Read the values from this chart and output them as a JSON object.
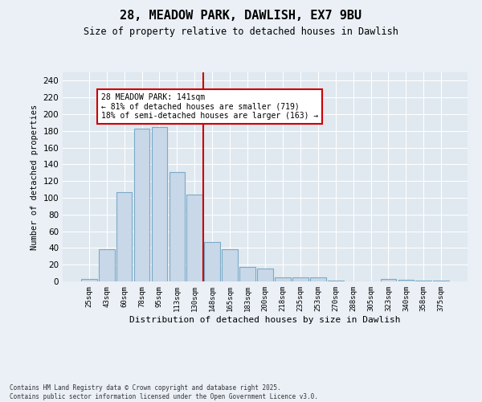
{
  "title": "28, MEADOW PARK, DAWLISH, EX7 9BU",
  "subtitle": "Size of property relative to detached houses in Dawlish",
  "xlabel": "Distribution of detached houses by size in Dawlish",
  "ylabel": "Number of detached properties",
  "bar_color": "#c8d8e8",
  "bar_edge_color": "#7aaac8",
  "background_color": "#e0e8f0",
  "fig_background_color": "#eaf0f6",
  "bin_labels": [
    "25sqm",
    "43sqm",
    "60sqm",
    "78sqm",
    "95sqm",
    "113sqm",
    "130sqm",
    "148sqm",
    "165sqm",
    "183sqm",
    "200sqm",
    "218sqm",
    "235sqm",
    "253sqm",
    "270sqm",
    "288sqm",
    "305sqm",
    "323sqm",
    "340sqm",
    "358sqm",
    "375sqm"
  ],
  "bar_values": [
    3,
    38,
    107,
    183,
    185,
    131,
    104,
    47,
    38,
    17,
    15,
    5,
    5,
    5,
    1,
    0,
    0,
    3,
    2,
    1,
    1
  ],
  "vline_x": 6.5,
  "vline_color": "#cc0000",
  "annotation_text": "28 MEADOW PARK: 141sqm\n← 81% of detached houses are smaller (719)\n18% of semi-detached houses are larger (163) →",
  "annotation_box_color": "#ffffff",
  "annotation_box_edge": "#cc0000",
  "ylim": [
    0,
    250
  ],
  "yticks": [
    0,
    20,
    40,
    60,
    80,
    100,
    120,
    140,
    160,
    180,
    200,
    220,
    240
  ],
  "footer": "Contains HM Land Registry data © Crown copyright and database right 2025.\nContains public sector information licensed under the Open Government Licence v3.0."
}
